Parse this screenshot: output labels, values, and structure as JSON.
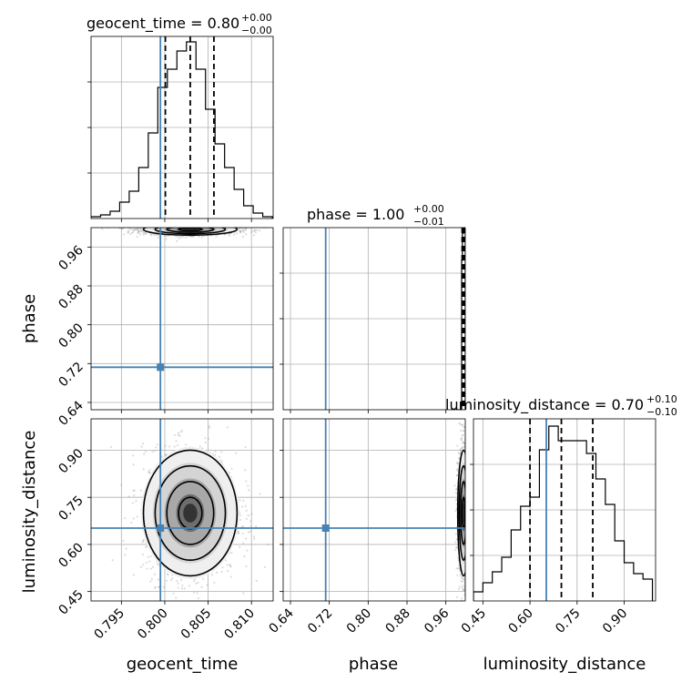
{
  "chart_data": {
    "type": "corner",
    "truth_color": "#4682b4",
    "parameters": [
      "geocent_time",
      "phase",
      "luminosity_distance"
    ],
    "titles": [
      {
        "text": "geocent_time = 0.80",
        "plus": "+0.00",
        "minus": "−0.00"
      },
      {
        "text": "phase = 1.00",
        "plus": "+0.00",
        "minus": "−0.01"
      },
      {
        "text": "luminosity_distance = 0.70",
        "plus": "+0.10",
        "minus": "−0.10"
      }
    ],
    "axis_labels": {
      "x": [
        "geocent_time",
        "phase",
        "luminosity_distance"
      ],
      "y": [
        "phase",
        "luminosity_distance"
      ]
    },
    "ranges": {
      "geocent_time": [
        0.7915,
        0.8125
      ],
      "phase": [
        0.625,
        1.0
      ],
      "luminosity_distance": [
        0.42,
        1.0
      ]
    },
    "ticks": {
      "geocent_time": [
        "0.795",
        "0.800",
        "0.805",
        "0.810"
      ],
      "phase": [
        "0.64",
        "0.72",
        "0.80",
        "0.88",
        "0.96"
      ],
      "luminosity_distance": [
        "0.45",
        "0.60",
        "0.75",
        "0.90"
      ]
    },
    "tick_values": {
      "geocent_time": [
        0.795,
        0.8,
        0.805,
        0.81
      ],
      "phase": [
        0.64,
        0.72,
        0.8,
        0.88,
        0.96
      ],
      "luminosity_distance": [
        0.45,
        0.6,
        0.75,
        0.9
      ]
    },
    "truths": {
      "geocent_time": 0.7995,
      "phase": 0.7125,
      "luminosity_distance": 0.652
    },
    "quantiles": {
      "geocent_time": [
        0.80007,
        0.80294,
        0.80567
      ],
      "phase": [
        0.9935,
        0.9965,
        0.999
      ],
      "luminosity_distance": [
        0.6,
        0.7,
        0.8
      ]
    },
    "histograms": {
      "geocent_time": {
        "edges": [
          0.7915,
          0.7926,
          0.7937,
          0.7948,
          0.7959,
          0.797,
          0.7981,
          0.7992,
          0.8003,
          0.8014,
          0.8025,
          0.8036,
          0.8047,
          0.8058,
          0.8069,
          0.808,
          0.8091,
          0.8102,
          0.8113,
          0.8124
        ],
        "heights": [
          0.01,
          0.02,
          0.04,
          0.09,
          0.15,
          0.28,
          0.47,
          0.72,
          0.82,
          0.92,
          0.97,
          0.82,
          0.6,
          0.41,
          0.28,
          0.16,
          0.07,
          0.03,
          0.01
        ]
      },
      "phase": {
        "edges": [
          0.97,
          0.9925,
          0.994,
          0.9955,
          0.997,
          0.9985,
          1.0
        ],
        "heights": [
          0.0,
          0.82,
          1.0,
          0.97,
          0.99,
          1.0
        ]
      },
      "luminosity_distance": {
        "edges": [
          0.42,
          0.45,
          0.48,
          0.51,
          0.54,
          0.57,
          0.6,
          0.63,
          0.66,
          0.69,
          0.72,
          0.75,
          0.78,
          0.81,
          0.84,
          0.87,
          0.9,
          0.93,
          0.96,
          0.99
        ],
        "heights": [
          0.05,
          0.1,
          0.16,
          0.24,
          0.39,
          0.52,
          0.57,
          0.83,
          0.96,
          0.88,
          0.88,
          0.88,
          0.81,
          0.67,
          0.53,
          0.33,
          0.21,
          0.15,
          0.12
        ]
      }
    }
  }
}
